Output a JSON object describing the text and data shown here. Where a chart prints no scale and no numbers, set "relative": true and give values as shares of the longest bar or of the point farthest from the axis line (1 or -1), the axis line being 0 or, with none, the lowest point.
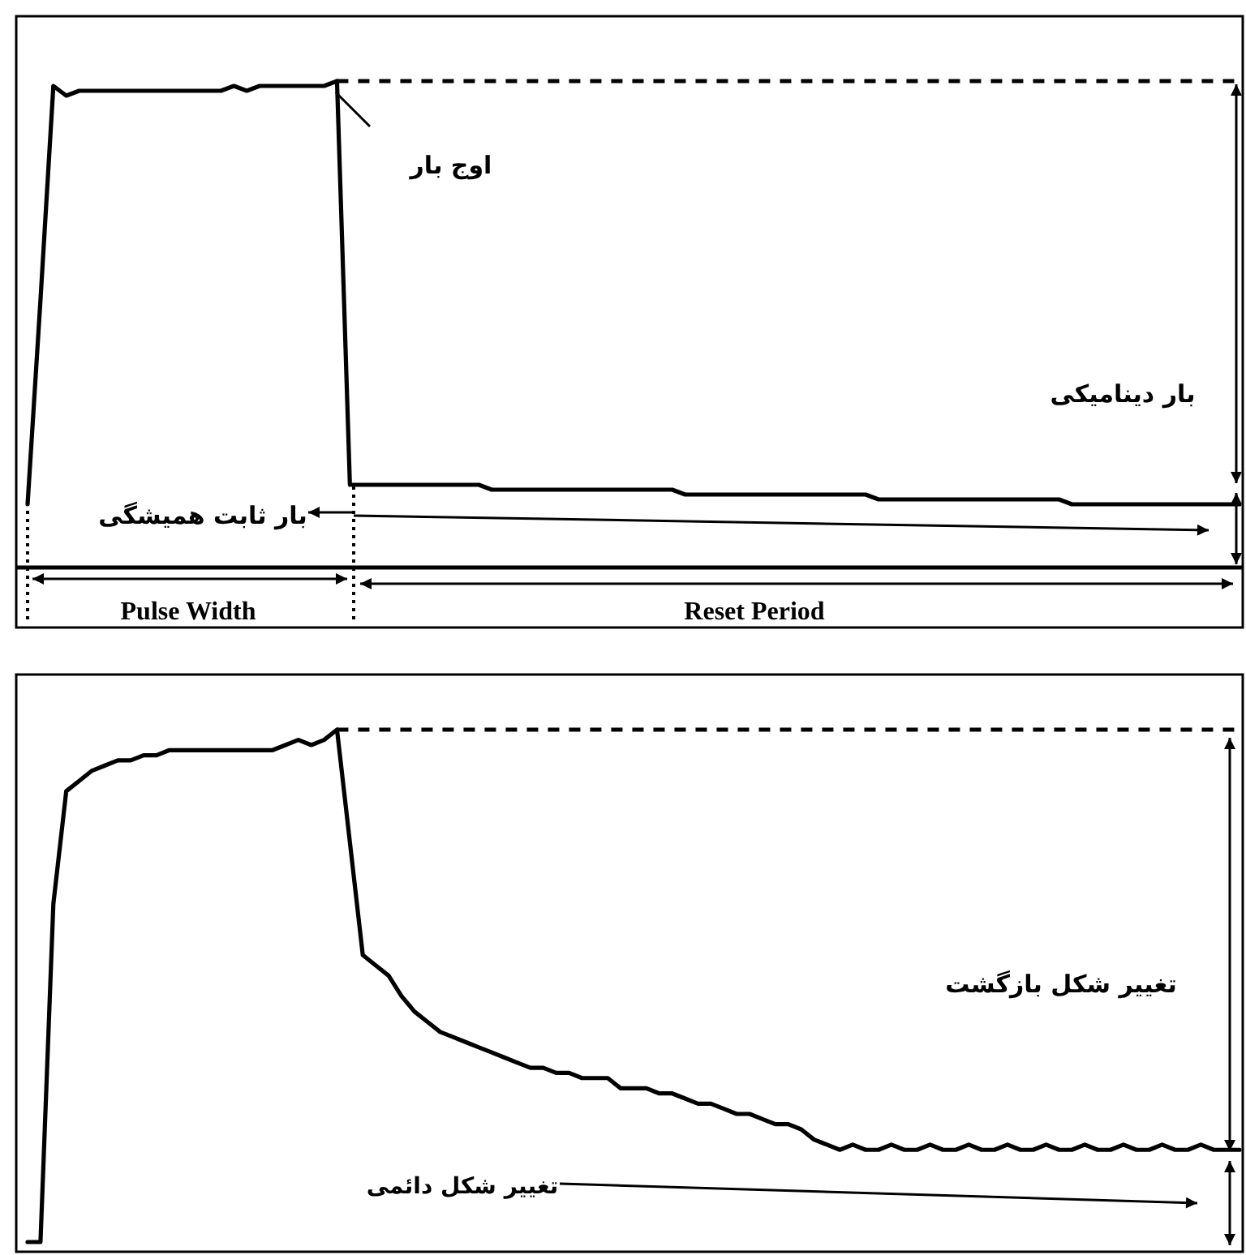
{
  "chart_data": [
    {
      "type": "line",
      "relative": true,
      "categories": [
        null,
        null,
        null,
        null,
        null,
        null,
        null,
        null,
        null,
        null,
        null,
        null,
        null,
        null,
        null,
        null,
        null,
        null,
        null,
        null,
        null,
        null,
        null,
        null,
        null,
        null,
        null,
        null,
        null,
        null,
        null,
        null,
        null,
        null,
        null,
        null,
        null,
        null,
        null,
        null,
        null,
        null,
        null,
        null,
        null,
        null,
        null,
        null,
        null,
        null,
        null,
        null,
        null,
        null,
        null,
        null,
        null,
        null,
        null,
        null,
        null,
        null,
        null,
        null,
        null,
        null,
        null,
        null,
        null,
        null,
        null,
        null,
        null,
        null,
        null,
        null,
        null,
        null,
        null,
        null,
        null,
        null,
        null,
        null,
        null,
        null,
        null,
        null,
        null,
        null,
        null,
        null,
        null,
        null,
        null
      ],
      "series": [
        {
          "color": "#000000",
          "values": [
            0.13,
            0.55,
            0.99,
            0.97,
            0.98,
            0.98,
            0.98,
            0.98,
            0.98,
            0.98,
            0.98,
            0.98,
            0.98,
            0.98,
            0.98,
            0.98,
            0.99,
            0.98,
            0.99,
            0.99,
            0.99,
            0.99,
            0.99,
            0.99,
            1.0,
            0.17,
            0.17,
            0.17,
            0.17,
            0.17,
            0.17,
            0.17,
            0.17,
            0.17,
            0.17,
            0.17,
            0.16,
            0.16,
            0.16,
            0.16,
            0.16,
            0.16,
            0.16,
            0.16,
            0.16,
            0.16,
            0.16,
            0.16,
            0.16,
            0.16,
            0.16,
            0.15,
            0.15,
            0.15,
            0.15,
            0.15,
            0.15,
            0.15,
            0.15,
            0.15,
            0.15,
            0.15,
            0.15,
            0.15,
            0.15,
            0.15,
            0.14,
            0.14,
            0.14,
            0.14,
            0.14,
            0.14,
            0.14,
            0.14,
            0.14,
            0.14,
            0.14,
            0.14,
            0.14,
            0.14,
            0.14,
            0.13,
            0.13,
            0.13,
            0.13,
            0.13,
            0.13,
            0.13,
            0.13,
            0.13,
            0.13,
            0.13,
            0.13,
            0.13,
            0.13
          ]
        }
      ],
      "ref_lines": [
        {
          "axis": "y",
          "value": 1,
          "line_style": "dashed"
        }
      ],
      "annotations": [
        "اوج بار",
        "بار دینامیکی",
        "بار ثابت همیشگی",
        "Pulse Width",
        "Reset Period"
      ]
    },
    {
      "type": "line",
      "relative": true,
      "categories": [
        null,
        null,
        null,
        null,
        null,
        null,
        null,
        null,
        null,
        null,
        null,
        null,
        null,
        null,
        null,
        null,
        null,
        null,
        null,
        null,
        null,
        null,
        null,
        null,
        null,
        null,
        null,
        null,
        null,
        null,
        null,
        null,
        null,
        null,
        null,
        null,
        null,
        null,
        null,
        null,
        null,
        null,
        null,
        null,
        null,
        null,
        null,
        null,
        null,
        null,
        null,
        null,
        null,
        null,
        null,
        null,
        null,
        null,
        null,
        null,
        null,
        null,
        null,
        null,
        null,
        null,
        null,
        null,
        null,
        null,
        null,
        null,
        null,
        null,
        null,
        null,
        null,
        null,
        null,
        null,
        null,
        null,
        null,
        null,
        null,
        null,
        null,
        null,
        null,
        null,
        null,
        null,
        null,
        null,
        null
      ],
      "series": [
        {
          "color": "#000000",
          "values": [
            0,
            0,
            0.66,
            0.88,
            0.9,
            0.92,
            0.93,
            0.94,
            0.94,
            0.95,
            0.95,
            0.96,
            0.96,
            0.96,
            0.96,
            0.96,
            0.96,
            0.96,
            0.96,
            0.96,
            0.97,
            0.98,
            0.97,
            0.98,
            1.0,
            0.78,
            0.56,
            0.54,
            0.52,
            0.48,
            0.45,
            0.43,
            0.41,
            0.4,
            0.39,
            0.38,
            0.37,
            0.36,
            0.35,
            0.34,
            0.34,
            0.33,
            0.33,
            0.32,
            0.32,
            0.32,
            0.3,
            0.3,
            0.3,
            0.29,
            0.29,
            0.28,
            0.27,
            0.27,
            0.26,
            0.25,
            0.25,
            0.24,
            0.23,
            0.23,
            0.22,
            0.2,
            0.19,
            0.18,
            0.19,
            0.18,
            0.18,
            0.19,
            0.18,
            0.18,
            0.19,
            0.18,
            0.18,
            0.19,
            0.18,
            0.18,
            0.19,
            0.18,
            0.18,
            0.19,
            0.18,
            0.18,
            0.19,
            0.18,
            0.18,
            0.19,
            0.18,
            0.18,
            0.19,
            0.18,
            0.18,
            0.19,
            0.18,
            0.18,
            0.18
          ]
        }
      ],
      "ref_lines": [
        {
          "axis": "y",
          "value": 1,
          "line_style": "dashed"
        }
      ],
      "annotations": [
        "تغییر شکل بازگشت",
        "تغییر شکل دائمی"
      ]
    }
  ]
}
